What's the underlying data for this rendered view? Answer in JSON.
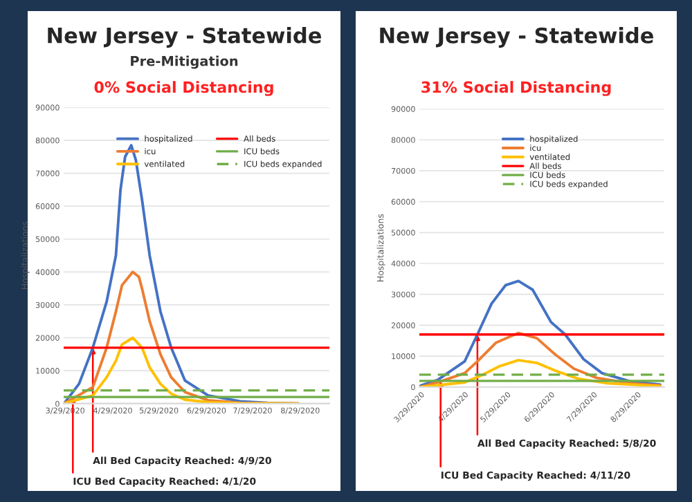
{
  "chart_data": [
    {
      "type": "line",
      "title": "New Jersey - Statewide",
      "subtitle": "0% Social Distancing",
      "ylabel": "Hospitalizations",
      "xlim": [
        "2020-03-28",
        "2020-09-17"
      ],
      "ylim": [
        0,
        90000
      ],
      "xticks": [
        {
          "value": "2020-03-29",
          "label": "3/29/2020"
        },
        {
          "value": "2020-04-29",
          "label": "4/29/2020"
        },
        {
          "value": "2020-05-29",
          "label": "5/29/2020"
        },
        {
          "value": "2020-06-29",
          "label": "6/29/2020"
        },
        {
          "value": "2020-07-29",
          "label": "7/29/2020"
        },
        {
          "value": "2020-08-29",
          "label": "8/29/2020"
        }
      ],
      "yticks": [
        0,
        10000,
        20000,
        30000,
        40000,
        50000,
        60000,
        70000,
        80000,
        90000
      ],
      "grid": "y",
      "legend": "top right",
      "marker": "none",
      "line_style": "solid",
      "series": [
        {
          "name": "hospitalized",
          "color": "#4472c4",
          "x": [
            "2020-03-29",
            "2020-04-07",
            "2020-04-16",
            "2020-04-25",
            "2020-05-01",
            "2020-05-04",
            "2020-05-07",
            "2020-05-11",
            "2020-05-14",
            "2020-05-18",
            "2020-05-23",
            "2020-05-30",
            "2020-06-06",
            "2020-06-15",
            "2020-06-30",
            "2020-07-21",
            "2020-08-08",
            "2020-08-28"
          ],
          "values": [
            500,
            6000,
            17000,
            31000,
            45000,
            65000,
            75000,
            78500,
            74000,
            62000,
            45000,
            28000,
            17000,
            7000,
            2500,
            700,
            200,
            0
          ]
        },
        {
          "name": "icu",
          "color": "#ed7d31",
          "x": [
            "2020-03-29",
            "2020-04-16",
            "2020-04-25",
            "2020-05-01",
            "2020-05-05",
            "2020-05-12",
            "2020-05-16",
            "2020-05-18",
            "2020-05-23",
            "2020-05-30",
            "2020-06-06",
            "2020-06-15",
            "2020-06-30",
            "2020-07-21",
            "2020-08-28"
          ],
          "values": [
            200,
            5000,
            17000,
            28000,
            36000,
            40000,
            38500,
            35000,
            25000,
            15000,
            8000,
            3500,
            1000,
            200,
            0
          ]
        },
        {
          "name": "ventilated",
          "color": "#ffc000",
          "x": [
            "2020-03-29",
            "2020-04-16",
            "2020-04-25",
            "2020-05-01",
            "2020-05-05",
            "2020-05-12",
            "2020-05-18",
            "2020-05-23",
            "2020-05-30",
            "2020-06-06",
            "2020-06-15",
            "2020-06-30",
            "2020-07-21",
            "2020-08-28"
          ],
          "values": [
            100,
            2500,
            8000,
            13000,
            18000,
            20000,
            17000,
            11000,
            6000,
            3000,
            1200,
            400,
            100,
            0
          ]
        }
      ],
      "ref_lines": [
        {
          "axis": "y",
          "value": 17000,
          "label": "All beds",
          "color": "#ff0000",
          "line_style": "solid"
        },
        {
          "axis": "y",
          "value": 2000,
          "label": "ICU beds",
          "color": "#70ad47",
          "line_style": "solid"
        },
        {
          "axis": "y",
          "value": 4000,
          "label": "ICU beds expanded",
          "color": "#70ad47",
          "line_style": "dashed"
        }
      ],
      "annotations": [
        "Pre-Mitigation",
        {
          "text": "All Bed Capacity Reached: 4/9/20",
          "x": "2020-04-16",
          "y": 17000
        },
        {
          "text": "ICU Bed Capacity Reached: 4/1/20",
          "x": "2020-04-03",
          "y": 2000
        }
      ]
    },
    {
      "type": "line",
      "title": "New Jersey - Statewide",
      "subtitle": "31% Social Distancing",
      "ylabel": "Hospitalizations",
      "xlim": [
        "2020-03-28",
        "2020-09-17"
      ],
      "ylim": [
        0,
        90000
      ],
      "xticks": [
        {
          "value": "2020-03-29",
          "label": "3/29/2020"
        },
        {
          "value": "2020-04-29",
          "label": "4/29/2020"
        },
        {
          "value": "2020-05-29",
          "label": "5/29/2020"
        },
        {
          "value": "2020-06-29",
          "label": "6/29/2020"
        },
        {
          "value": "2020-07-29",
          "label": "7/29/2020"
        },
        {
          "value": "2020-08-29",
          "label": "8/29/2020"
        }
      ],
      "yticks": [
        0,
        10000,
        20000,
        30000,
        40000,
        50000,
        60000,
        70000,
        80000,
        90000
      ],
      "grid": "y",
      "legend": "top right",
      "marker": "none",
      "line_style": "solid",
      "series": [
        {
          "name": "hospitalized",
          "color": "#4472c4",
          "x": [
            "2020-03-29",
            "2020-04-10",
            "2020-04-29",
            "2020-05-08",
            "2020-05-18",
            "2020-05-28",
            "2020-06-06",
            "2020-06-16",
            "2020-06-29",
            "2020-07-09",
            "2020-07-22",
            "2020-08-04",
            "2020-08-24",
            "2020-09-14"
          ],
          "values": [
            500,
            2300,
            8300,
            17000,
            27000,
            33000,
            34300,
            31500,
            21000,
            17000,
            9000,
            4500,
            1800,
            800
          ]
        },
        {
          "name": "icu",
          "color": "#ed7d31",
          "x": [
            "2020-03-29",
            "2020-04-12",
            "2020-04-29",
            "2020-05-08",
            "2020-05-21",
            "2020-06-06",
            "2020-06-19",
            "2020-07-02",
            "2020-07-15",
            "2020-07-31",
            "2020-08-24",
            "2020-09-14"
          ],
          "values": [
            0,
            1800,
            4500,
            8300,
            14300,
            17500,
            15800,
            10500,
            6000,
            3000,
            1200,
            500
          ]
        },
        {
          "name": "ventilated",
          "color": "#ffc000",
          "x": [
            "2020-03-29",
            "2020-04-29",
            "2020-05-11",
            "2020-05-24",
            "2020-06-06",
            "2020-06-19",
            "2020-07-02",
            "2020-07-18",
            "2020-08-08",
            "2020-09-14"
          ],
          "values": [
            0,
            1500,
            3800,
            6800,
            8700,
            7800,
            5300,
            2700,
            1200,
            300
          ]
        }
      ],
      "ref_lines": [
        {
          "axis": "y",
          "value": 17000,
          "label": "All beds",
          "color": "#ff0000",
          "line_style": "solid"
        },
        {
          "axis": "y",
          "value": 2000,
          "label": "ICU beds",
          "color": "#70ad47",
          "line_style": "solid"
        },
        {
          "axis": "y",
          "value": 4000,
          "label": "ICU beds expanded",
          "color": "#70ad47",
          "line_style": "dashed"
        }
      ],
      "annotations": [
        {
          "text": "All Bed Capacity Reached: 5/8/20",
          "x": "2020-05-08",
          "y": 17000
        },
        {
          "text": "ICU Bed Capacity Reached: 4/11/20",
          "x": "2020-04-12",
          "y": 2000
        }
      ]
    }
  ]
}
